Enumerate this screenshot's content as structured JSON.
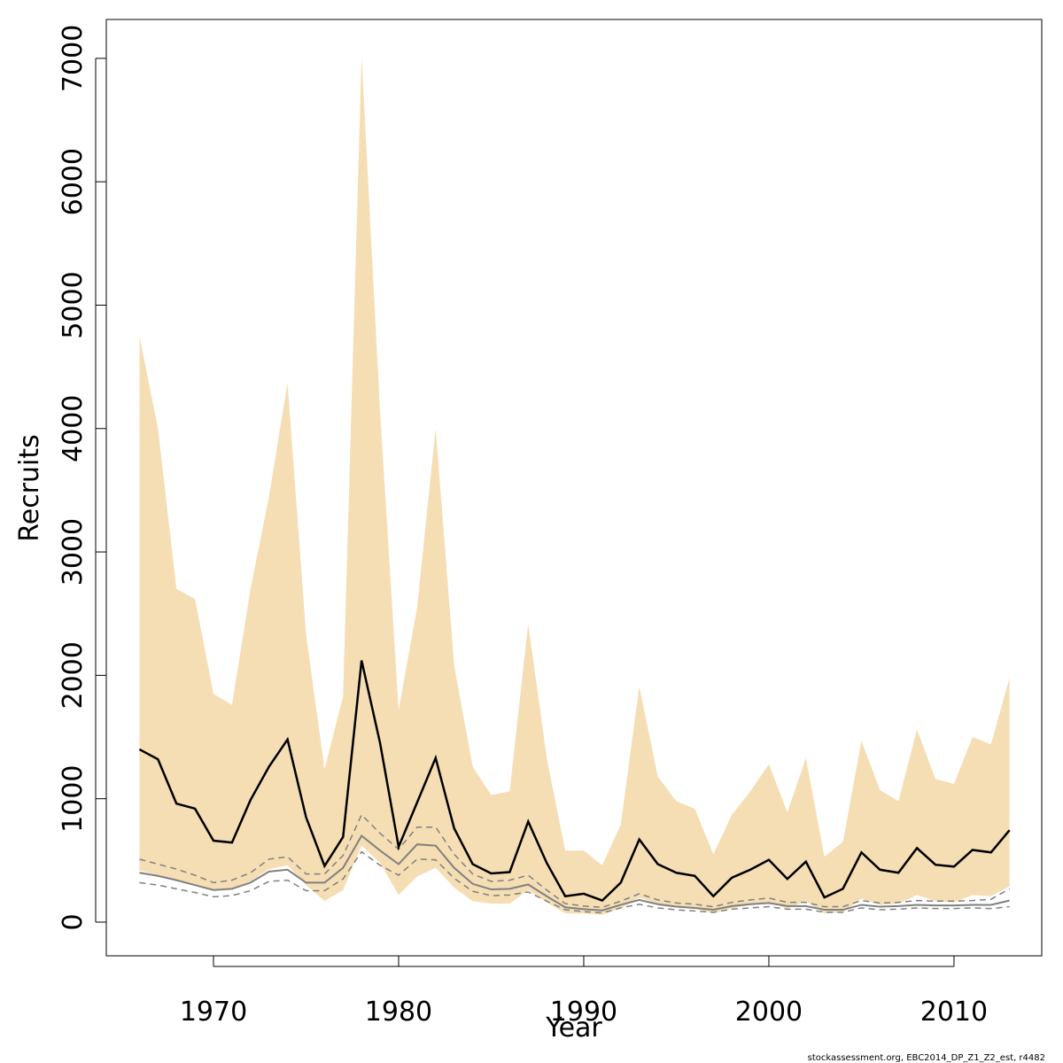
{
  "chart_data": {
    "type": "band-line",
    "x_label": "Year",
    "y_label": "Recruits",
    "footer": "stockassessment.org, EBC2014_DP_Z1_Z2_est, r4482",
    "x": [
      1966,
      1967,
      1968,
      1969,
      1970,
      1971,
      1972,
      1973,
      1974,
      1975,
      1976,
      1977,
      1978,
      1979,
      1980,
      1981,
      1982,
      1983,
      1984,
      1985,
      1986,
      1987,
      1988,
      1989,
      1990,
      1991,
      1992,
      1993,
      1994,
      1995,
      1996,
      1997,
      1998,
      1999,
      2000,
      2001,
      2002,
      2003,
      2004,
      2005,
      2006,
      2007,
      2008,
      2009,
      2010,
      2011,
      2012,
      2013
    ],
    "band": {
      "color": "#f5deb3",
      "upper": [
        4750,
        4000,
        2700,
        2620,
        1850,
        1760,
        2700,
        3450,
        4370,
        2330,
        1240,
        1830,
        7020,
        4130,
        1720,
        2550,
        4000,
        2080,
        1260,
        1030,
        1060,
        2420,
        1330,
        580,
        580,
        460,
        790,
        1910,
        1180,
        980,
        920,
        550,
        870,
        1060,
        1280,
        890,
        1330,
        530,
        650,
        1470,
        1070,
        980,
        1560,
        1160,
        1120,
        1500,
        1440,
        1980
      ],
      "lower": [
        420,
        380,
        340,
        300,
        260,
        270,
        330,
        430,
        460,
        300,
        170,
        260,
        620,
        480,
        220,
        370,
        440,
        280,
        170,
        150,
        150,
        260,
        160,
        70,
        70,
        60,
        110,
        200,
        150,
        120,
        110,
        70,
        110,
        140,
        160,
        110,
        170,
        70,
        80,
        190,
        140,
        150,
        220,
        170,
        160,
        220,
        210,
        290
      ]
    },
    "series": [
      {
        "color": "#808080",
        "dash": "dashed",
        "width": 1.5,
        "values": [
          510,
          470,
          430,
          380,
          320,
          340,
          400,
          510,
          530,
          390,
          390,
          540,
          870,
          720,
          590,
          770,
          770,
          550,
          390,
          330,
          340,
          380,
          260,
          150,
          130,
          120,
          170,
          230,
          180,
          155,
          145,
          125,
          160,
          180,
          195,
          160,
          160,
          125,
          125,
          175,
          155,
          160,
          175,
          170,
          170,
          175,
          185,
          270
        ]
      },
      {
        "color": "#808080",
        "dash": "solid",
        "width": 2,
        "values": [
          400,
          375,
          340,
          300,
          260,
          270,
          320,
          410,
          425,
          320,
          320,
          440,
          700,
          580,
          470,
          630,
          620,
          440,
          310,
          265,
          270,
          305,
          210,
          120,
          105,
          95,
          140,
          180,
          145,
          125,
          115,
          100,
          130,
          145,
          155,
          130,
          130,
          100,
          100,
          140,
          125,
          130,
          140,
          135,
          135,
          140,
          140,
          175
        ]
      },
      {
        "color": "#808080",
        "dash": "dashed",
        "width": 1.5,
        "values": [
          320,
          300,
          270,
          240,
          205,
          215,
          255,
          330,
          340,
          255,
          255,
          350,
          570,
          460,
          380,
          510,
          505,
          355,
          250,
          215,
          220,
          245,
          170,
          100,
          85,
          75,
          115,
          145,
          115,
          100,
          90,
          80,
          105,
          115,
          125,
          105,
          105,
          80,
          80,
          115,
          100,
          105,
          115,
          110,
          110,
          115,
          110,
          125
        ]
      },
      {
        "color": "#000000",
        "dash": "solid",
        "width": 2.5,
        "values": [
          1400,
          1320,
          960,
          920,
          660,
          645,
          990,
          1260,
          1480,
          850,
          455,
          690,
          2120,
          1450,
          610,
          970,
          1330,
          760,
          470,
          395,
          405,
          815,
          480,
          210,
          230,
          175,
          320,
          670,
          470,
          400,
          375,
          210,
          360,
          425,
          505,
          350,
          490,
          200,
          270,
          565,
          425,
          400,
          600,
          465,
          450,
          585,
          565,
          745
        ]
      }
    ],
    "xlim": [
      1964.21,
      2014.74
    ],
    "ylim": [
      -273,
      7315
    ],
    "xticks": [
      1970,
      1980,
      1990,
      2000,
      2010
    ],
    "yticks": [
      0,
      1000,
      2000,
      3000,
      4000,
      5000,
      6000,
      7000
    ]
  }
}
